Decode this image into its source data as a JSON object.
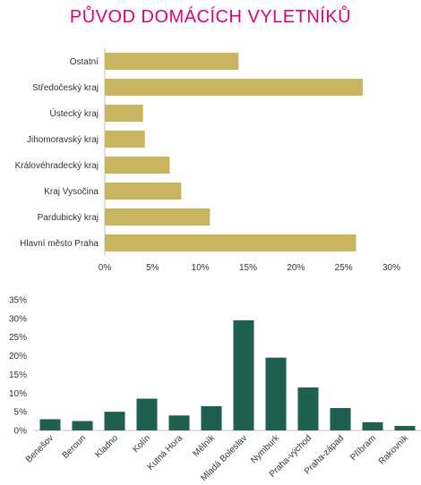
{
  "title": "PŮVOD DOMÁCÍCH VYLETNÍKŮ",
  "colors": {
    "title": "#e0007a",
    "bar_gold": "#c9b55f",
    "bar_green": "#1e5f50",
    "axis": "#bfbfbf",
    "text": "#333333"
  },
  "chart_data": [
    {
      "type": "bar",
      "orientation": "horizontal",
      "categories": [
        "Ostatní",
        "Středočeský kraj",
        "Ústecký kraj",
        "Jihomoravský kraj",
        "Královéhradecký kraj",
        "Kraj Vysočina",
        "Pardubický kraj",
        "Hlavní město Praha"
      ],
      "values": [
        14,
        27,
        4,
        4.2,
        6.8,
        8,
        11,
        26.3
      ],
      "xlim": [
        0,
        30
      ],
      "tick_labels": [
        "0%",
        "5%",
        "10%",
        "15%",
        "20%",
        "25%",
        "30%"
      ],
      "grid": false,
      "title": "PŮVOD DOMÁCÍCH VYLETNÍKŮ"
    },
    {
      "type": "bar",
      "orientation": "vertical",
      "categories": [
        "Benešov",
        "Beroun",
        "Kladno",
        "Kolín",
        "Kutná Hora",
        "Mělník",
        "Mladá Boleslav",
        "Nymburk",
        "Praha-východ",
        "Praha-západ",
        "Příbram",
        "Rakovník"
      ],
      "values": [
        3,
        2.5,
        5,
        8.5,
        4,
        6.5,
        29.5,
        19.5,
        11.5,
        6,
        2.2,
        1.2
      ],
      "ylim": [
        0,
        35
      ],
      "tick_labels": [
        "0%",
        "5%",
        "10%",
        "15%",
        "20%",
        "25%",
        "30%",
        "35%"
      ],
      "grid": false
    }
  ]
}
